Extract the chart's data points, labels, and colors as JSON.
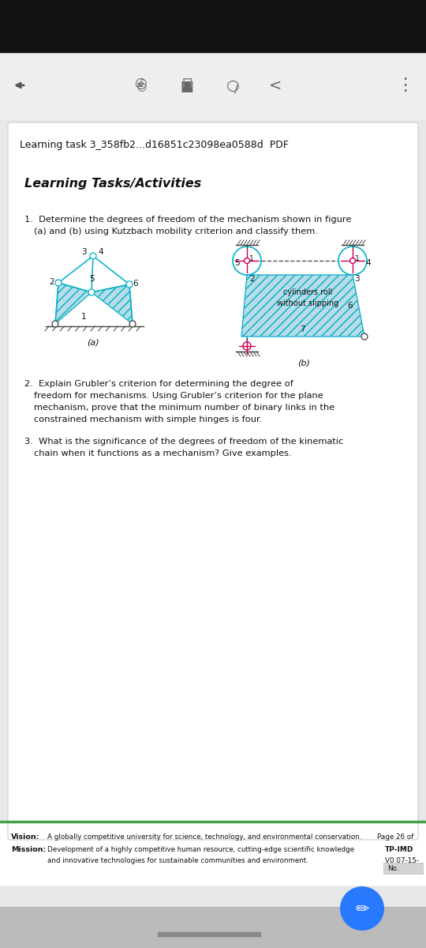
{
  "top_bar_color": "#111111",
  "toolbar_bg": "#eeeeee",
  "content_bg": "#e8e8e8",
  "page_bg": "#ffffff",
  "title_bar_text": "Learning task 3_358fb2...d16851c23098ea0588d  PDF",
  "heading": "Learning Tasks/Activities",
  "footer_line_color": "#43a047",
  "footer_vision_label": "Vision:",
  "footer_mission_label": "Mission:",
  "footer_vision_text": "A globally competitive university for science, technology, and environmental conservation.",
  "footer_mission_text1": "Development of a highly competitive human resource, cutting-edge scientific knowledge",
  "footer_mission_text2": "and innovative technologies for sustainable communities and environment.",
  "footer_page_text": "Page 26 of",
  "footer_tp_text": "TP-IMD",
  "footer_vo_text": "V0 07-15-",
  "footer_no_text": "No.",
  "bottom_bar_color": "#bbbbbb",
  "fab_color": "#2979ff",
  "link_color": "#00b0c8",
  "pin_color": "#cc0055",
  "ground_color": "#444444",
  "text_color": "#111111"
}
